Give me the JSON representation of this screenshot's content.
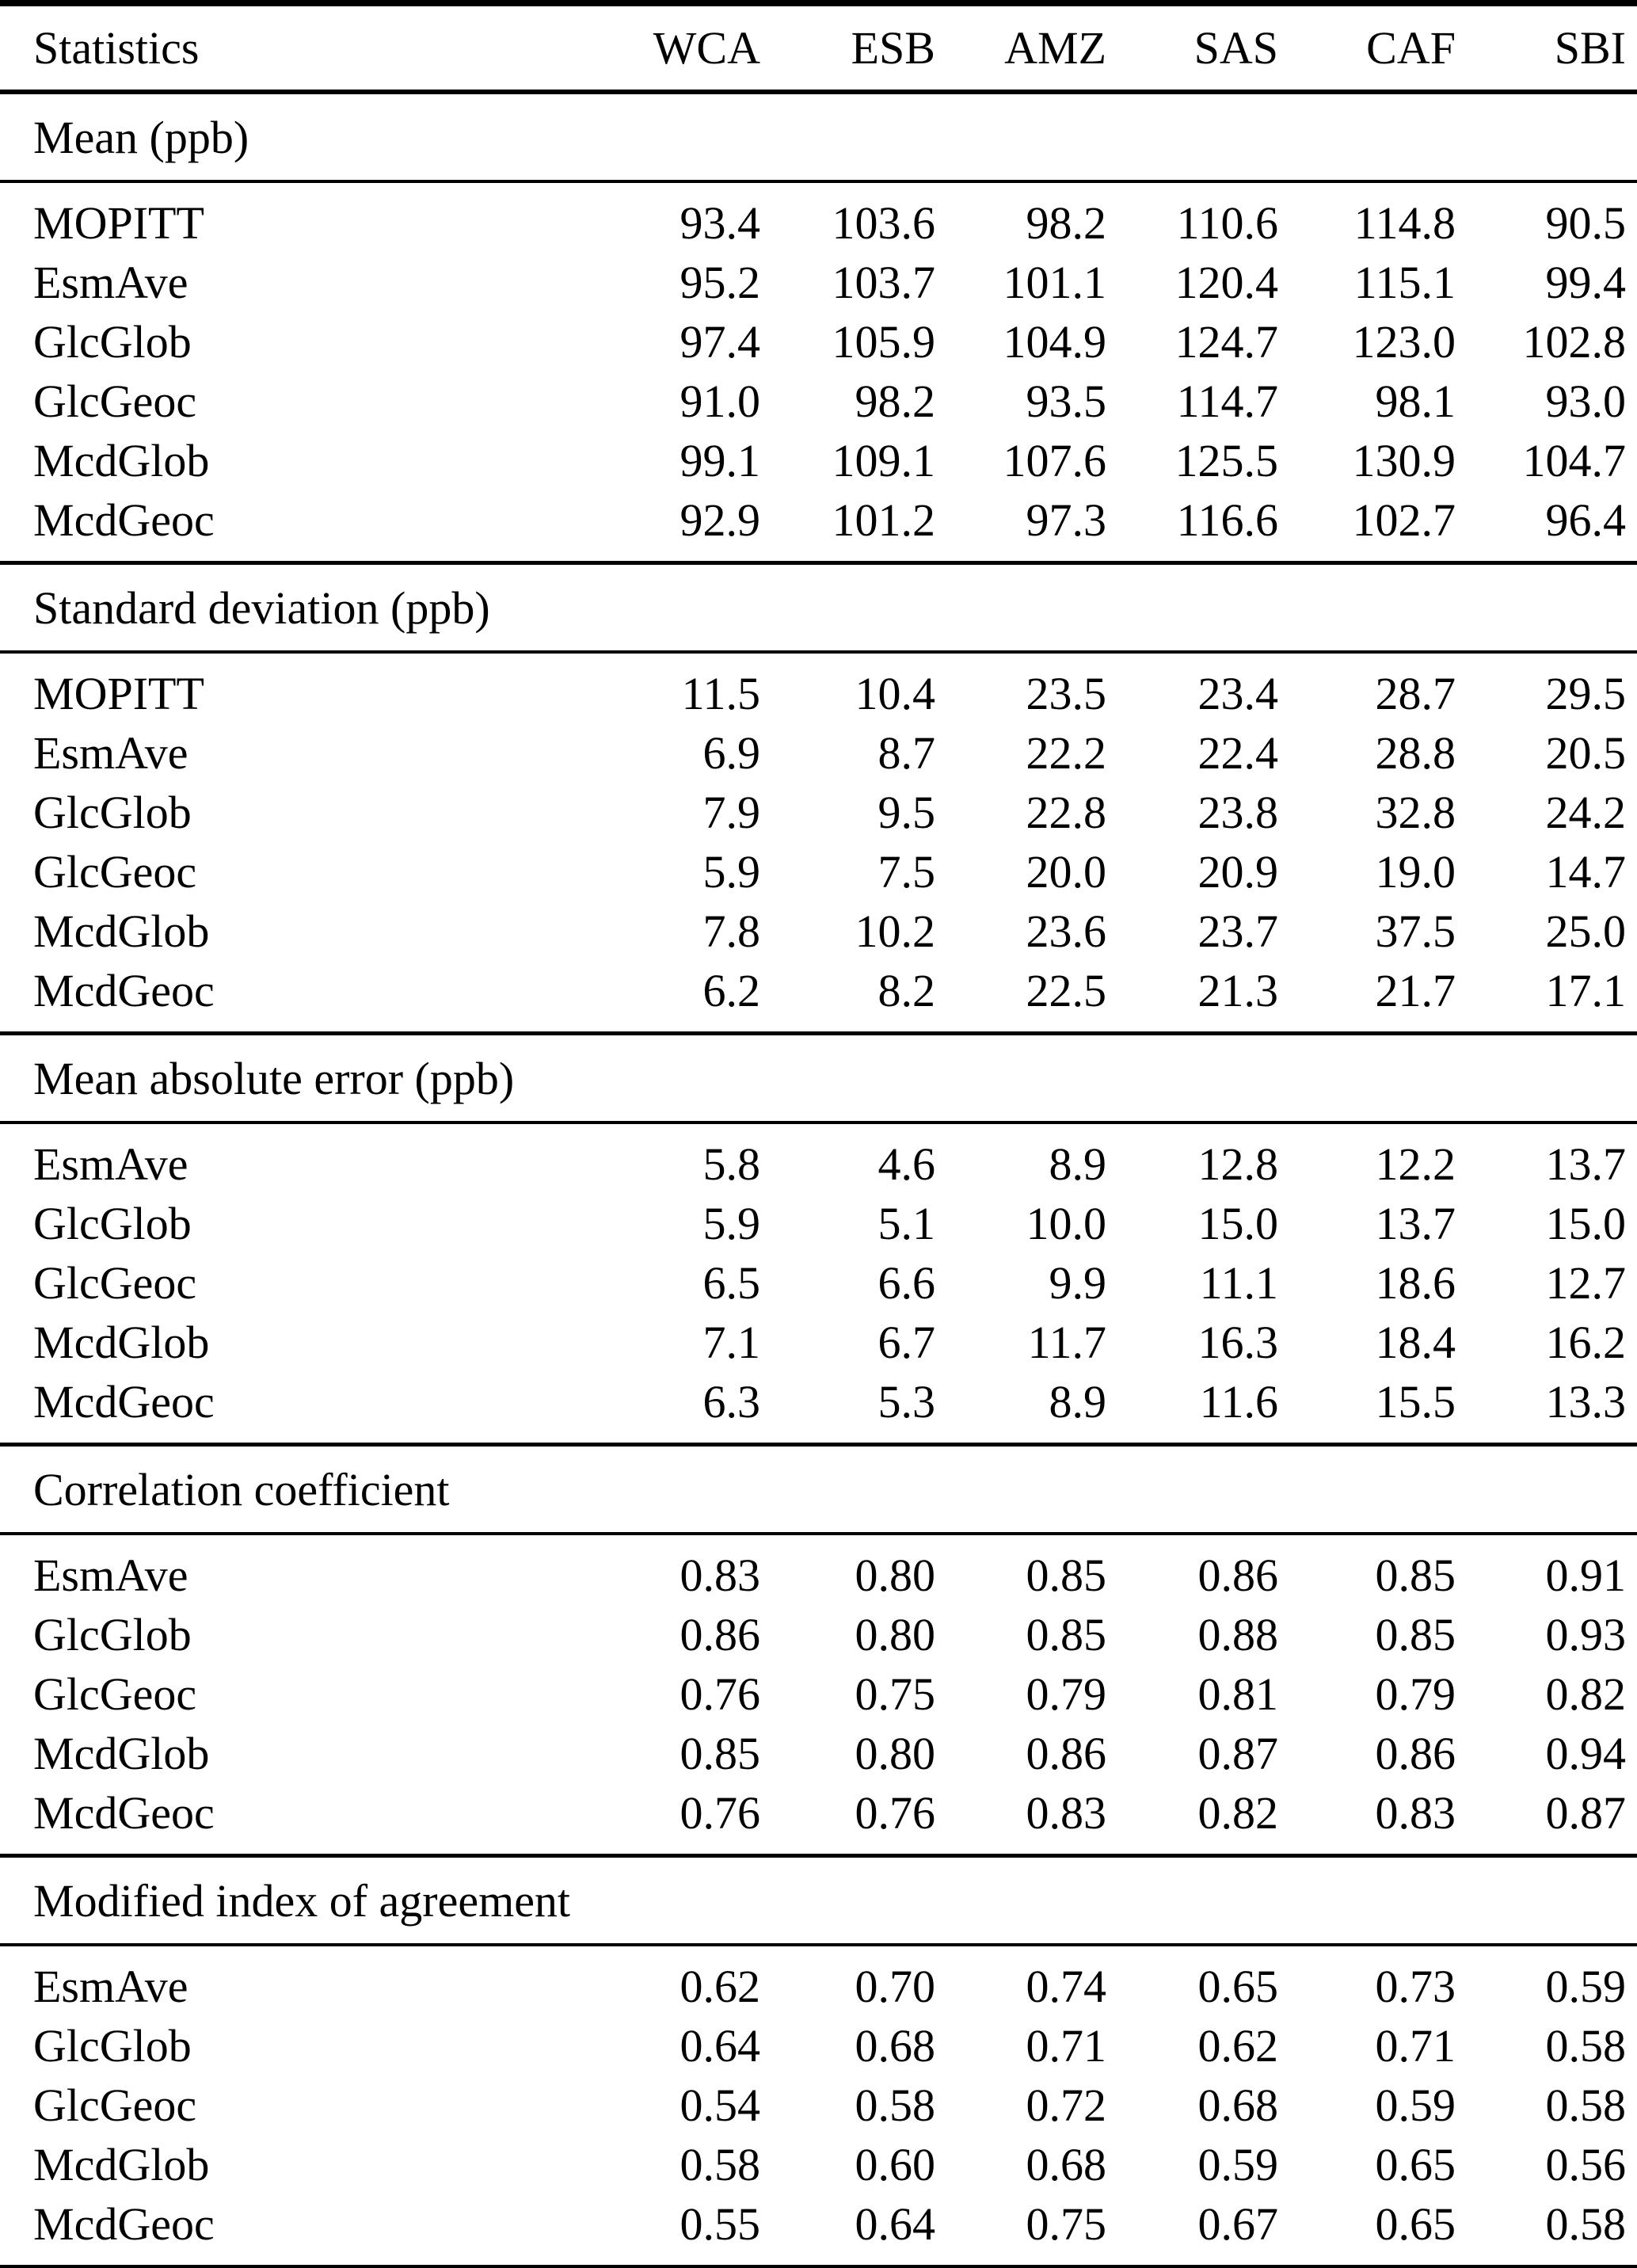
{
  "table": {
    "header": {
      "label": "Statistics",
      "columns": [
        "WCA",
        "ESB",
        "AMZ",
        "SAS",
        "CAF",
        "SBI"
      ]
    },
    "sections": [
      {
        "title": "Mean (ppb)",
        "rows": [
          {
            "label": "MOPITT",
            "values": [
              "93.4",
              "103.6",
              "98.2",
              "110.6",
              "114.8",
              "90.5"
            ]
          },
          {
            "label": "EsmAve",
            "values": [
              "95.2",
              "103.7",
              "101.1",
              "120.4",
              "115.1",
              "99.4"
            ]
          },
          {
            "label": "GlcGlob",
            "values": [
              "97.4",
              "105.9",
              "104.9",
              "124.7",
              "123.0",
              "102.8"
            ]
          },
          {
            "label": "GlcGeoc",
            "values": [
              "91.0",
              "98.2",
              "93.5",
              "114.7",
              "98.1",
              "93.0"
            ]
          },
          {
            "label": "McdGlob",
            "values": [
              "99.1",
              "109.1",
              "107.6",
              "125.5",
              "130.9",
              "104.7"
            ]
          },
          {
            "label": "McdGeoc",
            "values": [
              "92.9",
              "101.2",
              "97.3",
              "116.6",
              "102.7",
              "96.4"
            ]
          }
        ]
      },
      {
        "title": "Standard deviation (ppb)",
        "rows": [
          {
            "label": "MOPITT",
            "values": [
              "11.5",
              "10.4",
              "23.5",
              "23.4",
              "28.7",
              "29.5"
            ]
          },
          {
            "label": "EsmAve",
            "values": [
              "6.9",
              "8.7",
              "22.2",
              "22.4",
              "28.8",
              "20.5"
            ]
          },
          {
            "label": "GlcGlob",
            "values": [
              "7.9",
              "9.5",
              "22.8",
              "23.8",
              "32.8",
              "24.2"
            ]
          },
          {
            "label": "GlcGeoc",
            "values": [
              "5.9",
              "7.5",
              "20.0",
              "20.9",
              "19.0",
              "14.7"
            ]
          },
          {
            "label": "McdGlob",
            "values": [
              "7.8",
              "10.2",
              "23.6",
              "23.7",
              "37.5",
              "25.0"
            ]
          },
          {
            "label": "McdGeoc",
            "values": [
              "6.2",
              "8.2",
              "22.5",
              "21.3",
              "21.7",
              "17.1"
            ]
          }
        ]
      },
      {
        "title": "Mean absolute error (ppb)",
        "rows": [
          {
            "label": "EsmAve",
            "values": [
              "5.8",
              "4.6",
              "8.9",
              "12.8",
              "12.2",
              "13.7"
            ]
          },
          {
            "label": "GlcGlob",
            "values": [
              "5.9",
              "5.1",
              "10.0",
              "15.0",
              "13.7",
              "15.0"
            ]
          },
          {
            "label": "GlcGeoc",
            "values": [
              "6.5",
              "6.6",
              "9.9",
              "11.1",
              "18.6",
              "12.7"
            ]
          },
          {
            "label": "McdGlob",
            "values": [
              "7.1",
              "6.7",
              "11.7",
              "16.3",
              "18.4",
              "16.2"
            ]
          },
          {
            "label": "McdGeoc",
            "values": [
              "6.3",
              "5.3",
              "8.9",
              "11.6",
              "15.5",
              "13.3"
            ]
          }
        ]
      },
      {
        "title": "Correlation coefficient",
        "rows": [
          {
            "label": "EsmAve",
            "values": [
              "0.83",
              "0.80",
              "0.85",
              "0.86",
              "0.85",
              "0.91"
            ]
          },
          {
            "label": "GlcGlob",
            "values": [
              "0.86",
              "0.80",
              "0.85",
              "0.88",
              "0.85",
              "0.93"
            ]
          },
          {
            "label": "GlcGeoc",
            "values": [
              "0.76",
              "0.75",
              "0.79",
              "0.81",
              "0.79",
              "0.82"
            ]
          },
          {
            "label": "McdGlob",
            "values": [
              "0.85",
              "0.80",
              "0.86",
              "0.87",
              "0.86",
              "0.94"
            ]
          },
          {
            "label": "McdGeoc",
            "values": [
              "0.76",
              "0.76",
              "0.83",
              "0.82",
              "0.83",
              "0.87"
            ]
          }
        ]
      },
      {
        "title": "Modified index of agreement",
        "rows": [
          {
            "label": "EsmAve",
            "values": [
              "0.62",
              "0.70",
              "0.74",
              "0.65",
              "0.73",
              "0.59"
            ]
          },
          {
            "label": "GlcGlob",
            "values": [
              "0.64",
              "0.68",
              "0.71",
              "0.62",
              "0.71",
              "0.58"
            ]
          },
          {
            "label": "GlcGeoc",
            "values": [
              "0.54",
              "0.58",
              "0.72",
              "0.68",
              "0.59",
              "0.58"
            ]
          },
          {
            "label": "McdGlob",
            "values": [
              "0.58",
              "0.60",
              "0.68",
              "0.59",
              "0.65",
              "0.56"
            ]
          },
          {
            "label": "McdGeoc",
            "values": [
              "0.55",
              "0.64",
              "0.75",
              "0.67",
              "0.65",
              "0.58"
            ]
          }
        ]
      }
    ]
  }
}
